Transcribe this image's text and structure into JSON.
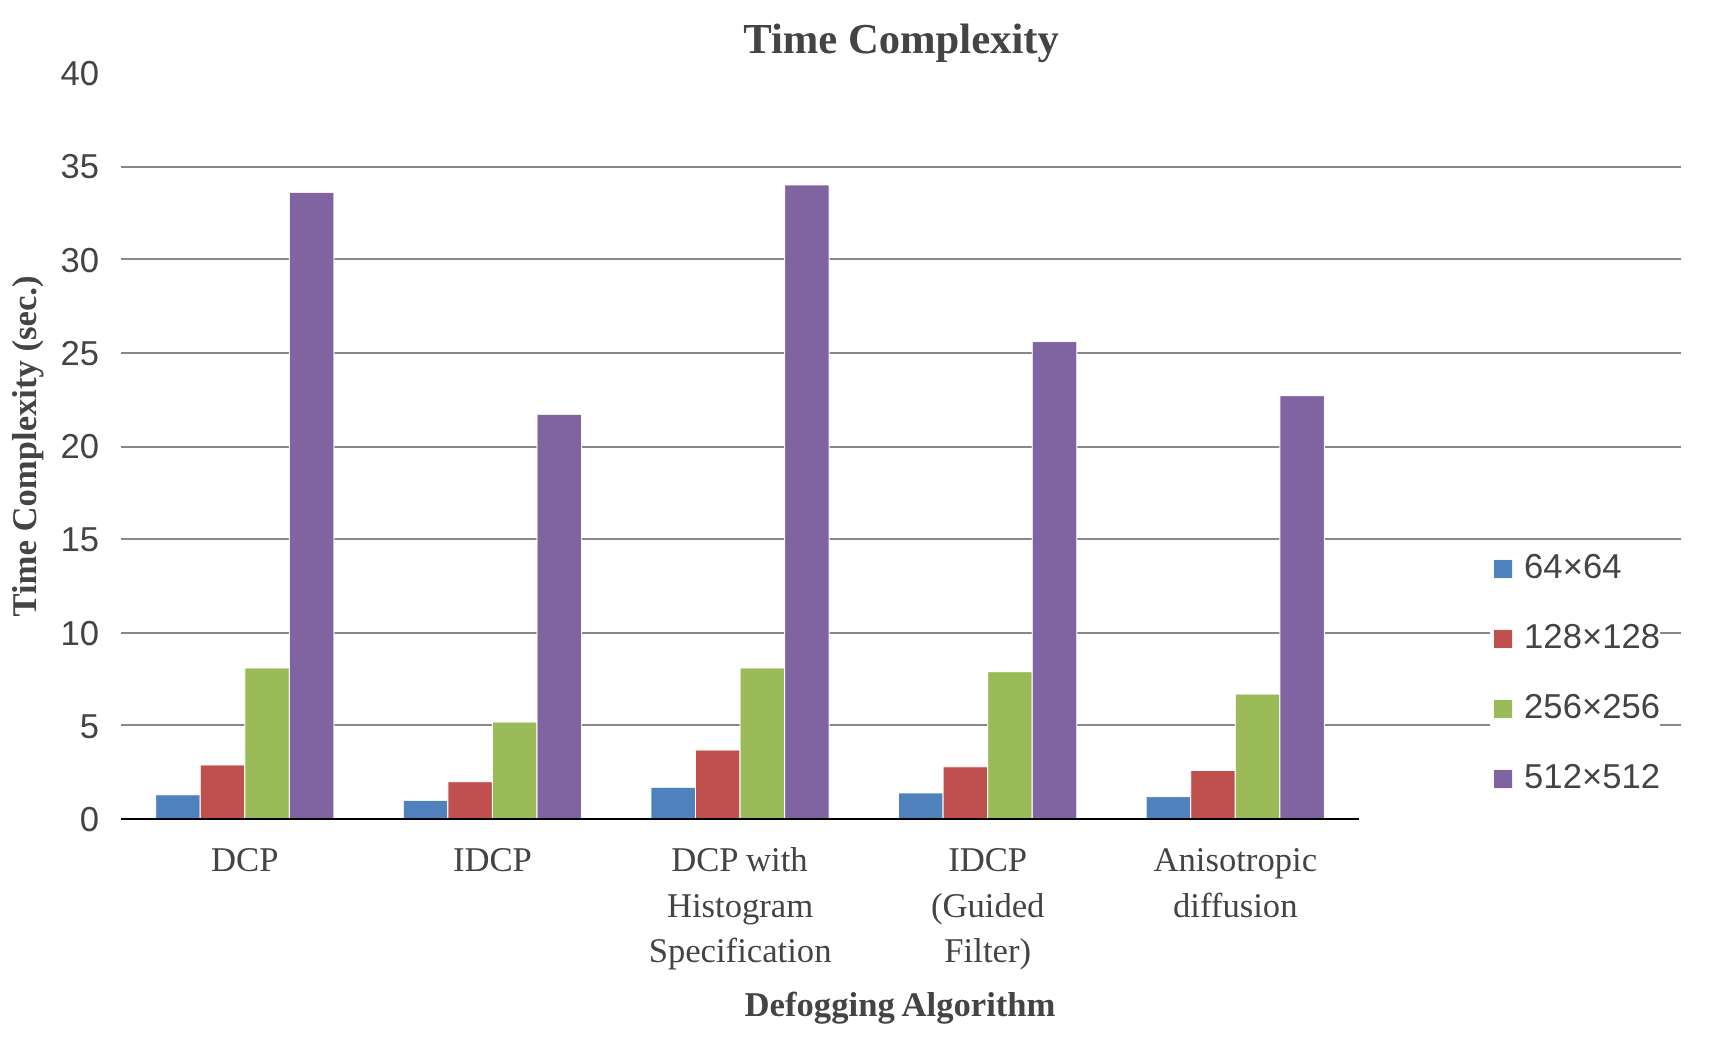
{
  "chart_data": {
    "type": "bar",
    "title": "Time Complexity",
    "xlabel": "Defogging Algorithm",
    "ylabel": "Time Complexity (sec.)",
    "categories": [
      "DCP",
      "IDCP",
      "DCP with\nHistogram\nSpecification",
      "IDCP\n(Guided\nFilter)",
      "Anisotropic\ndiffusion"
    ],
    "series": [
      {
        "name": "64×64",
        "color": "#4f81bd",
        "values": [
          1.3,
          1.0,
          1.7,
          1.4,
          1.2
        ]
      },
      {
        "name": "128×128",
        "color": "#c0504d",
        "values": [
          2.9,
          2.0,
          3.7,
          2.8,
          2.6
        ]
      },
      {
        "name": "256×256",
        "color": "#9bbb59",
        "values": [
          8.1,
          5.2,
          8.1,
          7.9,
          6.7
        ]
      },
      {
        "name": "512×512",
        "color": "#8064a2",
        "values": [
          33.6,
          21.7,
          34.0,
          25.6,
          22.7
        ]
      }
    ],
    "ylim": [
      0,
      40
    ],
    "yticks": [
      0,
      5,
      10,
      15,
      20,
      25,
      30,
      35,
      40
    ],
    "grid": "y",
    "legend": "right"
  }
}
